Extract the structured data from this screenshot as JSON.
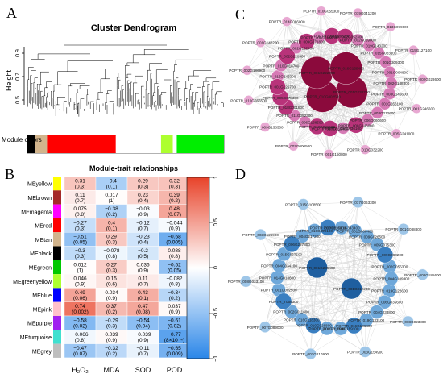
{
  "panels": {
    "a": "A",
    "b": "B",
    "c": "C",
    "d": "D"
  },
  "dendrogram": {
    "title": "Cluster Dendrogram",
    "ylabel": "Height",
    "yticks": [
      "0.5",
      "0.7",
      "0.9"
    ],
    "module_colors_label": "Module colors",
    "module_colors": [
      {
        "color": "#000000",
        "fraction": 0.04
      },
      {
        "color": "#d2b48c",
        "fraction": 0.06
      },
      {
        "color": "#ff0000",
        "fraction": 0.35
      },
      {
        "color": "#ffffff",
        "fraction": 0.23
      },
      {
        "color": "#adff2f",
        "fraction": 0.06
      },
      {
        "color": "#ffffff",
        "fraction": 0.02
      },
      {
        "color": "#00ee00",
        "fraction": 0.24
      }
    ]
  },
  "heatmap": {
    "title": "Module-trait relationships",
    "columns": [
      "H₂O₂",
      "MDA",
      "SOD",
      "POD"
    ],
    "colorbar_ticks": [
      "1",
      "0.5",
      "0",
      "−0.5",
      "−1"
    ],
    "rows": [
      {
        "name": "MEyellow",
        "color": "#ffff00",
        "cells": [
          {
            "r": 0.31,
            "t": "0.31",
            "p": "(0.3)"
          },
          {
            "r": -0.4,
            "t": "−0.4",
            "p": "(0.1)"
          },
          {
            "r": 0.29,
            "t": "0.29",
            "p": "(0.3)"
          },
          {
            "r": 0.32,
            "t": "0.32",
            "p": "(0.3)"
          }
        ]
      },
      {
        "name": "MEbrown",
        "color": "#a52a2a",
        "cells": [
          {
            "r": 0.11,
            "t": "0.11",
            "p": "(0.7)"
          },
          {
            "r": 0.017,
            "t": "0.017",
            "p": "(1)"
          },
          {
            "r": 0.23,
            "t": "0.23",
            "p": "(0.4)"
          },
          {
            "r": 0.39,
            "t": "0.39",
            "p": "(0.2)"
          }
        ]
      },
      {
        "name": "MEmagenta",
        "color": "#ff00ff",
        "cells": [
          {
            "r": 0.075,
            "t": "0.075",
            "p": "(0.8)"
          },
          {
            "r": -0.38,
            "t": "−0.38",
            "p": "(0.2)"
          },
          {
            "r": -0.03,
            "t": "−0.03",
            "p": "(0.9)"
          },
          {
            "r": 0.48,
            "t": "0.48",
            "p": "(0.07)"
          }
        ]
      },
      {
        "name": "MEred",
        "color": "#ff0000",
        "cells": [
          {
            "r": -0.27,
            "t": "−0.27",
            "p": "(0.3)"
          },
          {
            "r": 0.4,
            "t": "0.4",
            "p": "(0.1)"
          },
          {
            "r": -0.12,
            "t": "−0.12",
            "p": "(0.7)"
          },
          {
            "r": -0.044,
            "t": "−0.044",
            "p": "(0.9)"
          }
        ]
      },
      {
        "name": "MEtan",
        "color": "#d2b48c",
        "cells": [
          {
            "r": -0.51,
            "t": "−0.51",
            "p": "(0.05)"
          },
          {
            "r": 0.29,
            "t": "0.29",
            "p": "(0.3)"
          },
          {
            "r": -0.23,
            "t": "−0.23",
            "p": "(0.4)"
          },
          {
            "r": -0.68,
            "t": "−0.68",
            "p": "(0.005)"
          }
        ]
      },
      {
        "name": "MEblack",
        "color": "#000000",
        "cells": [
          {
            "r": -0.3,
            "t": "−0.3",
            "p": "(0.3)"
          },
          {
            "r": -0.078,
            "t": "−0.078",
            "p": "(0.8)"
          },
          {
            "r": -0.2,
            "t": "−0.2",
            "p": "(0.5)"
          },
          {
            "r": 0.088,
            "t": "0.088",
            "p": "(0.8)"
          }
        ]
      },
      {
        "name": "MEgreen",
        "color": "#00c800",
        "cells": [
          {
            "r": 0.012,
            "t": "0.012",
            "p": "(1)"
          },
          {
            "r": 0.27,
            "t": "0.27",
            "p": "(0.3)"
          },
          {
            "r": 0.036,
            "t": "0.036",
            "p": "(0.9)"
          },
          {
            "r": -0.52,
            "t": "−0.52",
            "p": "(0.05)"
          }
        ]
      },
      {
        "name": "MEgreenyellow",
        "color": "#adff2f",
        "cells": [
          {
            "r": 0.046,
            "t": "0.046",
            "p": "(0.9)"
          },
          {
            "r": 0.15,
            "t": "0.15",
            "p": "(0.6)"
          },
          {
            "r": 0.11,
            "t": "0.11",
            "p": "(0.7)"
          },
          {
            "r": -0.082,
            "t": "−0.082",
            "p": "(0.8)"
          }
        ]
      },
      {
        "name": "MEblue",
        "color": "#0000ff",
        "cells": [
          {
            "r": 0.49,
            "t": "0.49",
            "p": "(0.06)"
          },
          {
            "r": 0.034,
            "t": "0.034",
            "p": "(0.9)"
          },
          {
            "r": 0.43,
            "t": "0.43",
            "p": "(0.1)"
          },
          {
            "r": -0.34,
            "t": "−0.34",
            "p": "(0.2)"
          }
        ]
      },
      {
        "name": "MEpink",
        "color": "#ffc0cb",
        "cells": [
          {
            "r": 0.74,
            "t": "0.74",
            "p": "(0.002)"
          },
          {
            "r": 0.37,
            "t": "0.37",
            "p": "(0.2)"
          },
          {
            "r": 0.47,
            "t": "0.47",
            "p": "(0.08)"
          },
          {
            "r": 0.037,
            "t": "0.037",
            "p": "(0.9)"
          }
        ]
      },
      {
        "name": "MEpurple",
        "color": "#a020f0",
        "cells": [
          {
            "r": -0.58,
            "t": "−0.58",
            "p": "(0.02)"
          },
          {
            "r": -0.29,
            "t": "−0.29",
            "p": "(0.3)"
          },
          {
            "r": -0.54,
            "t": "−0.54",
            "p": "(0.04)"
          },
          {
            "r": -0.61,
            "t": "−0.61",
            "p": "(0.02)"
          }
        ]
      },
      {
        "name": "MEturquoise",
        "color": "#40e0d0",
        "cells": [
          {
            "r": -0.066,
            "t": "−0.066",
            "p": "(0.8)"
          },
          {
            "r": 0.039,
            "t": "0.039",
            "p": "(0.9)"
          },
          {
            "r": -0.039,
            "t": "−0.039",
            "p": "(0.9)"
          },
          {
            "r": -0.77,
            "t": "−0.77",
            "p": "(8×10⁻⁴)"
          }
        ]
      },
      {
        "name": "MEgrey",
        "color": "#bebebe",
        "cells": [
          {
            "r": -0.47,
            "t": "−0.47",
            "p": "(0.07)"
          },
          {
            "r": -0.32,
            "t": "−0.32",
            "p": "(0.2)"
          },
          {
            "r": -0.11,
            "t": "−0.11",
            "p": "(0.7)"
          },
          {
            "r": -0.65,
            "t": "−0.65",
            "p": "(0.009)"
          }
        ]
      }
    ]
  },
  "network_c": {
    "colors": {
      "hub": "#8b0a3c",
      "mid": "#b8337a",
      "light": "#d67ab5",
      "pale": "#e8a8d2",
      "edge": "#c9c9c9"
    },
    "nodes": [
      {
        "id": "POPTR_019G041200",
        "tier": "pale"
      },
      {
        "id": "POPTR_013G079600",
        "tier": "pale"
      },
      {
        "id": "POPTR_015G127100",
        "tier": "pale"
      },
      {
        "id": "POPTR_002G028600",
        "tier": "pale"
      },
      {
        "id": "POPTR_008G146600",
        "tier": "light"
      },
      {
        "id": "POPTR_001G266100",
        "tier": "light"
      },
      {
        "id": "POPTR_003G212600",
        "tier": "light"
      },
      {
        "id": "POPTR_001G246600",
        "tier": "pale"
      },
      {
        "id": "POPTR_006G060600",
        "tier": "light"
      },
      {
        "id": "POPTR_008G146000",
        "tier": "mid"
      },
      {
        "id": "POPTR_008G036100",
        "tier": "light"
      },
      {
        "id": "POPTR_010G169400",
        "tier": "mid"
      },
      {
        "id": "POPTR_018G081500",
        "tier": "mid"
      },
      {
        "id": "POPTR_006G138500",
        "tier": "light"
      },
      {
        "id": "POPTR_005G241000",
        "tier": "pale"
      },
      {
        "id": "POPTR_011G052300",
        "tier": "light"
      },
      {
        "id": "POPTR_018G001800",
        "tier": "mid"
      },
      {
        "id": "POPTR_005G078300",
        "tier": "mid"
      },
      {
        "id": "POPTR_001G238700",
        "tier": "hub"
      },
      {
        "id": "POPTR_010G002500",
        "tier": "hub"
      },
      {
        "id": "POPTR_001G126700",
        "tier": "mid"
      },
      {
        "id": "POPTR_010G032200",
        "tier": "pale"
      },
      {
        "id": "POPTR_016G146300",
        "tier": "light"
      },
      {
        "id": "POPTR_010G018700",
        "tier": "light"
      },
      {
        "id": "POPTR_001G222300",
        "tier": "hub"
      },
      {
        "id": "POPTR_016G139400",
        "tier": "hub"
      },
      {
        "id": "POPTR_002G220300",
        "tier": "mid"
      },
      {
        "id": "POPTR_002G132400",
        "tier": "light"
      },
      {
        "id": "POPTR_009G071800",
        "tier": "mid"
      },
      {
        "id": "POPTR_001G150800",
        "tier": "pale"
      },
      {
        "id": "POPTR_008G214500",
        "tier": "light"
      },
      {
        "id": "POPTR_001G296200",
        "tier": "mid"
      },
      {
        "id": "POPTR_002G052300",
        "tier": "mid"
      },
      {
        "id": "POPTR_002G089000",
        "tier": "light"
      },
      {
        "id": "POPTR_007G000500",
        "tier": "pale"
      },
      {
        "id": "POPTR_019G143200",
        "tier": "light"
      },
      {
        "id": "POPTR_015G023100",
        "tier": "light"
      },
      {
        "id": "POPTR_009G138300",
        "tier": "pale"
      },
      {
        "id": "POPTR_001G309300",
        "tier": "light"
      },
      {
        "id": "POPTR_001G004800",
        "tier": "light"
      },
      {
        "id": "POPTR_002G148300",
        "tier": "light"
      },
      {
        "id": "POPTR_010G066500",
        "tier": "pale"
      },
      {
        "id": "POPTR_002G186900",
        "tier": "pale"
      },
      {
        "id": "POPTR_001G142200",
        "tier": "pale"
      },
      {
        "id": "POPTR_014G086000",
        "tier": "pale"
      },
      {
        "id": "POPTR_010G055300",
        "tier": "pale"
      }
    ]
  },
  "network_d": {
    "colors": {
      "hub": "#1f5fa0",
      "mid": "#3a7fc1",
      "light": "#6fa8da",
      "pale": "#9ec6e8",
      "edge": "#c9c9c9"
    },
    "nodes": [
      {
        "id": "POPTR_017G063300",
        "tier": "pale"
      },
      {
        "id": "POPTR_001G088800",
        "tier": "pale"
      },
      {
        "id": "POPTR_008G185600",
        "tier": "pale"
      },
      {
        "id": "POPTR_008G023800",
        "tier": "pale"
      },
      {
        "id": "POPTR_003G154900",
        "tier": "pale"
      },
      {
        "id": "POPTR_019G128600",
        "tier": "light"
      },
      {
        "id": "POPTR_006G035600",
        "tier": "light"
      },
      {
        "id": "POPTR_004G233800",
        "tier": "light"
      },
      {
        "id": "POPTR_019G133100",
        "tier": "light"
      },
      {
        "id": "POPTR_016G136400",
        "tier": "mid"
      },
      {
        "id": "POPTR_004G169100",
        "tier": "light"
      },
      {
        "id": "POPTR_002G017500",
        "tier": "light"
      },
      {
        "id": "POPTR_010G028800",
        "tier": "mid"
      },
      {
        "id": "POPTR_016G118300",
        "tier": "light"
      },
      {
        "id": "POPTR_002G011600",
        "tier": "light"
      },
      {
        "id": "POPTR_001G012200",
        "tier": "hub"
      },
      {
        "id": "POPTR_T069300",
        "tier": "mid"
      },
      {
        "id": "POPTR_001G002500",
        "tier": "light"
      },
      {
        "id": "POPTR_014G018600",
        "tier": "light"
      },
      {
        "id": "POPTR_004G034100",
        "tier": "light"
      },
      {
        "id": "POPTR_015G067500",
        "tier": "light"
      },
      {
        "id": "POPTR_001G285400",
        "tier": "hub"
      },
      {
        "id": "POPTR_006G227800",
        "tier": "mid"
      },
      {
        "id": "POPTR_004G217200",
        "tier": "light"
      },
      {
        "id": "POPTR_010G099100",
        "tier": "light"
      },
      {
        "id": "POPTR_003G116900",
        "tier": "mid"
      },
      {
        "id": "POPTR_001G343400",
        "tier": "light"
      },
      {
        "id": "POPTR_001G008400",
        "tier": "light"
      },
      {
        "id": "POPTR_009G026500",
        "tier": "light"
      },
      {
        "id": "POPTR_005G075300",
        "tier": "light"
      },
      {
        "id": "POPTR_009G080200",
        "tier": "mid"
      },
      {
        "id": "POPTR_002G055300",
        "tier": "light"
      },
      {
        "id": "POPTR_004G109300",
        "tier": "light"
      },
      {
        "id": "POPTR_003G210900",
        "tier": "pale"
      },
      {
        "id": "POPTR_007G089000",
        "tier": "pale"
      },
      {
        "id": "POPTR_008G033100",
        "tier": "pale"
      },
      {
        "id": "POPTR_003G126900",
        "tier": "pale"
      },
      {
        "id": "POPTR_015G108500",
        "tier": "pale"
      }
    ]
  }
}
